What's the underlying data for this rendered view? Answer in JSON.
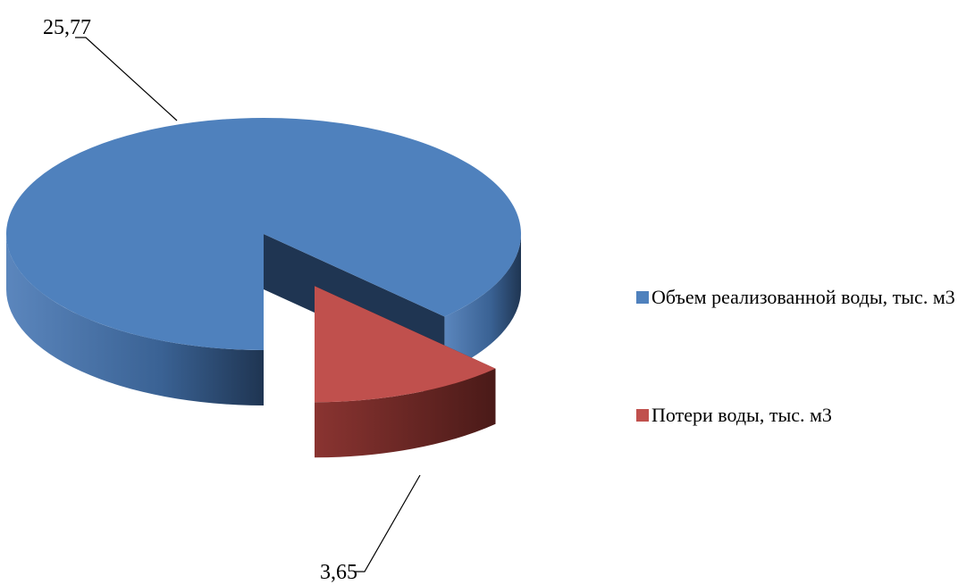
{
  "chart_data": {
    "type": "pie",
    "categories": [
      "Объем реализованной воды, тыс. м3",
      "Потери воды, тыс. м3"
    ],
    "values": [
      25.77,
      3.65
    ],
    "value_labels": [
      "25,77",
      "3,65"
    ],
    "colors": [
      "#4f81bd",
      "#c0504d"
    ],
    "legend": "right"
  }
}
